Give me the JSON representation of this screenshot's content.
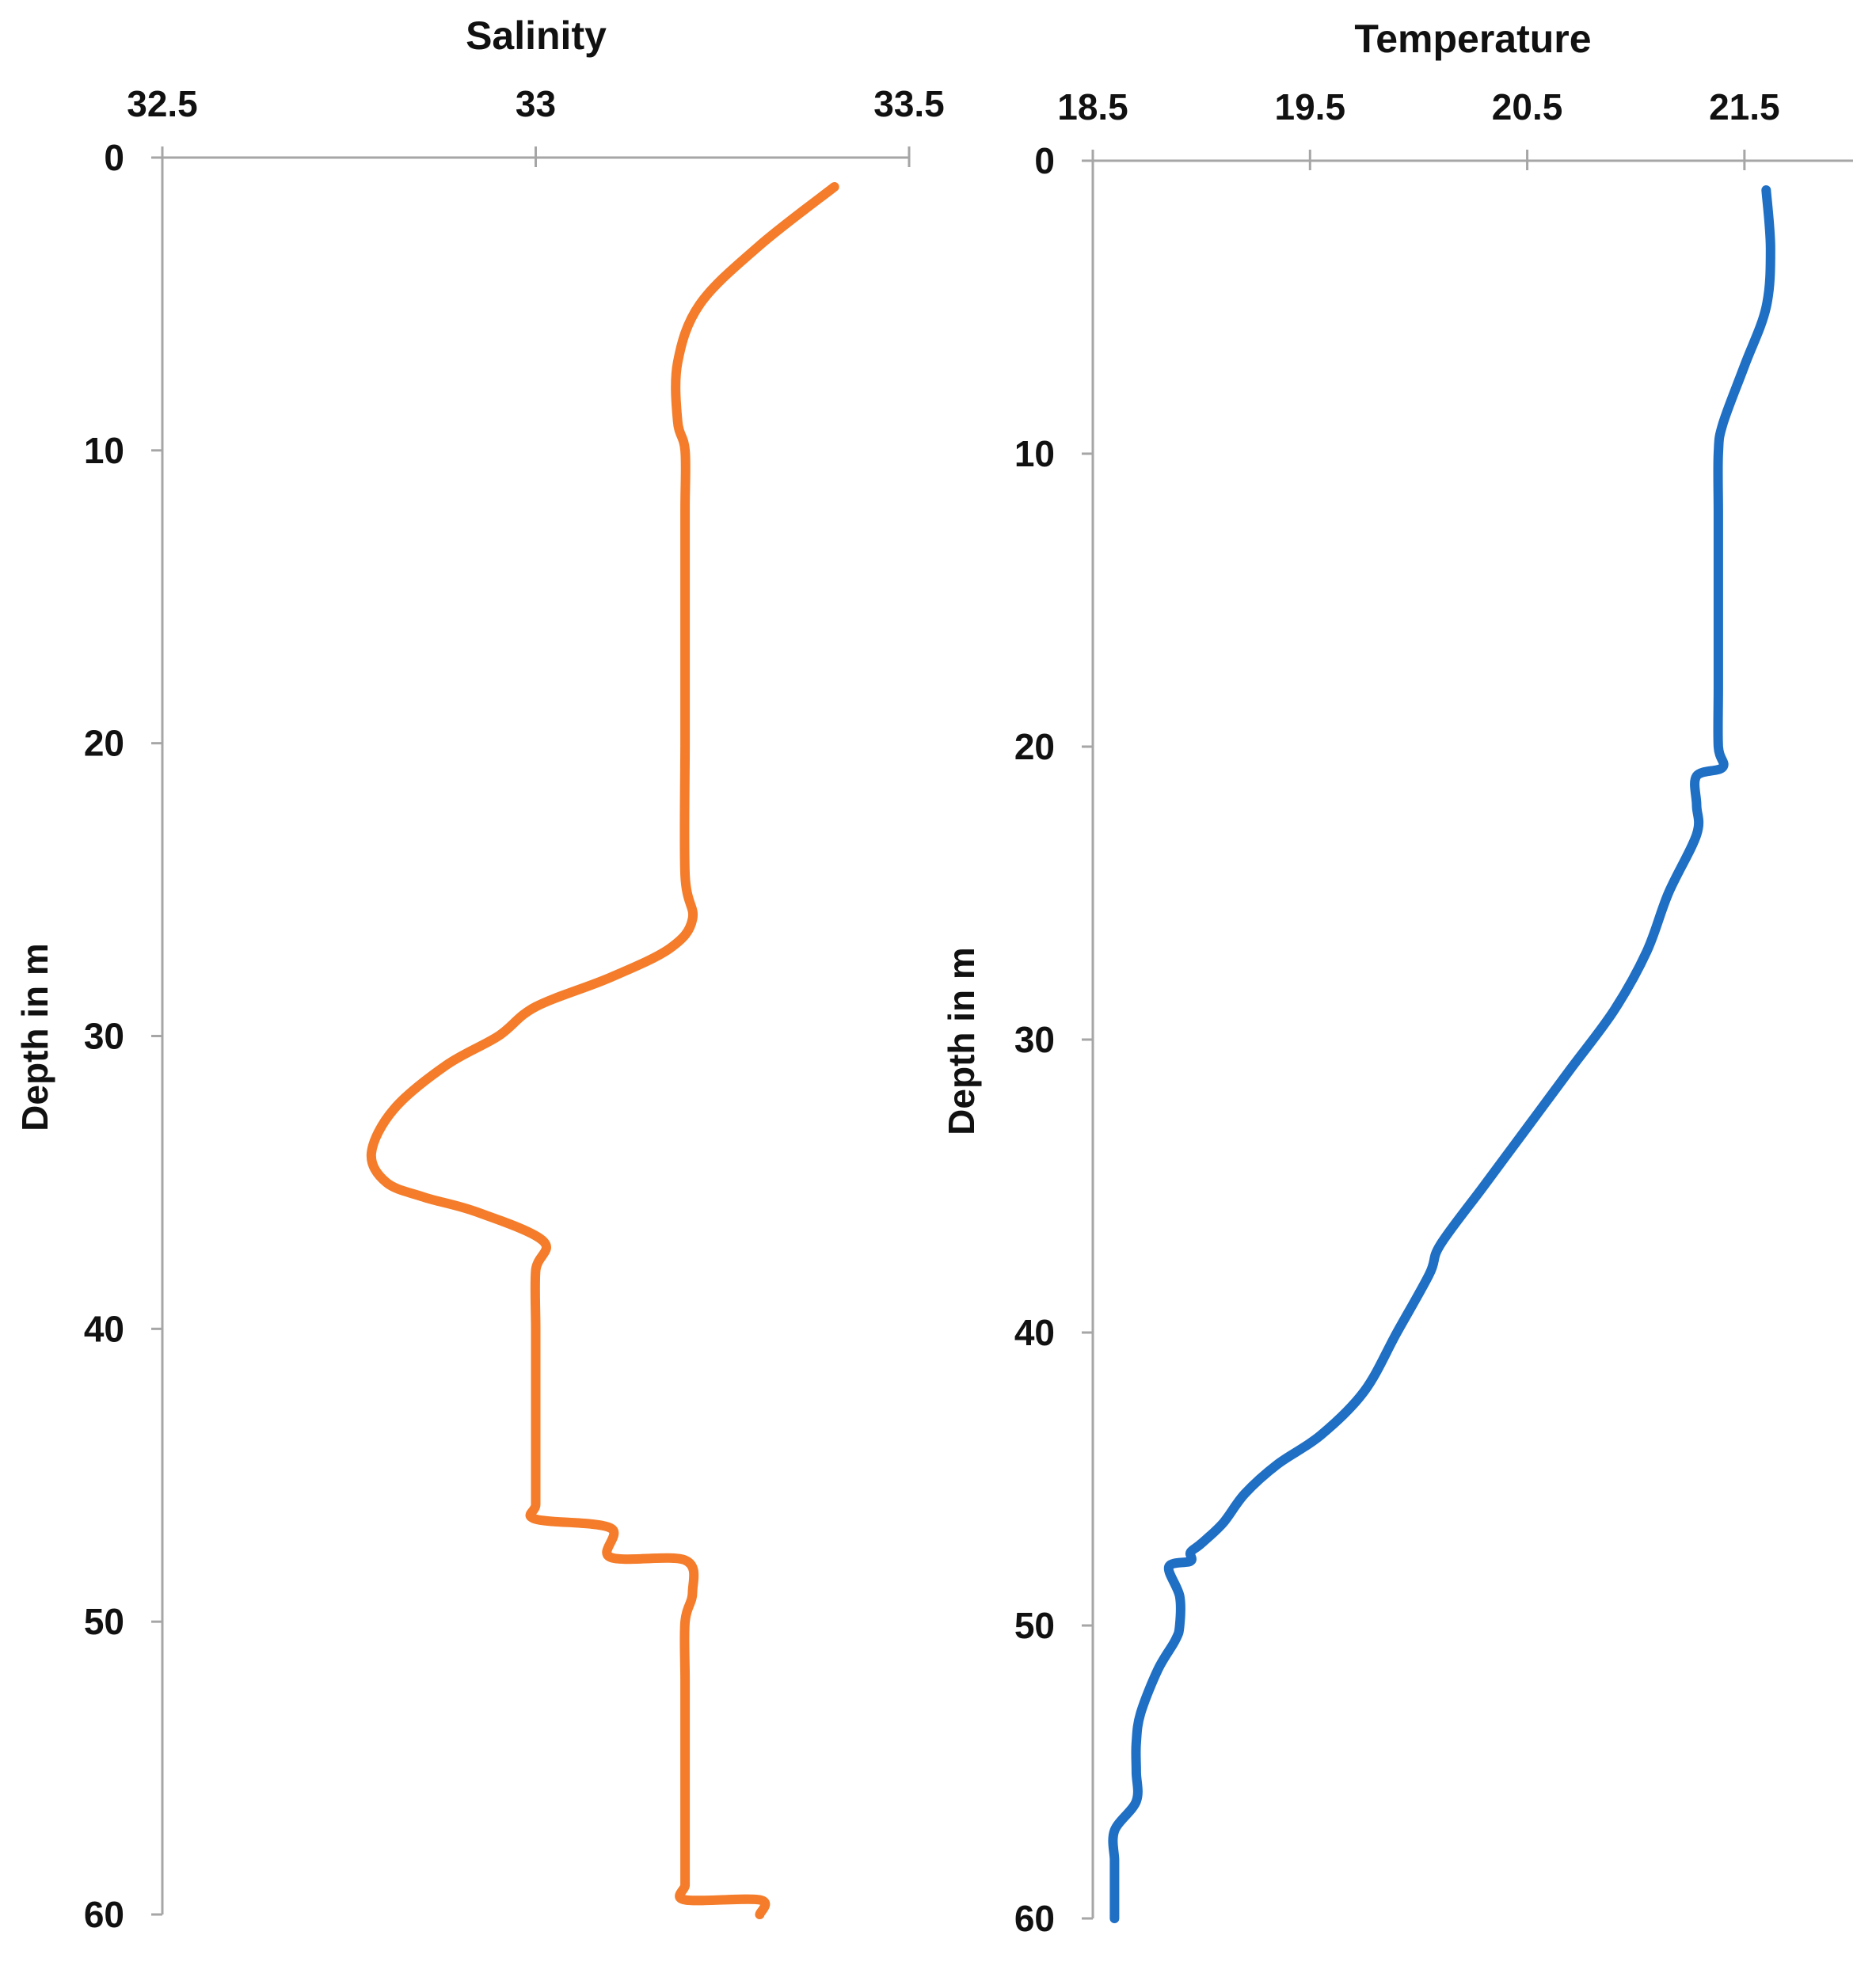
{
  "chart_data": [
    {
      "type": "line",
      "title": "Salinity",
      "xlabel": "",
      "ylabel": "Depth in m",
      "x_axis_position": "top",
      "y_axis_inverted": true,
      "xlim": [
        32.5,
        33.5
      ],
      "ylim": [
        0,
        60
      ],
      "xticks": [
        "32.5",
        "33",
        "33.5"
      ],
      "yticks": [
        "0",
        "10",
        "20",
        "30",
        "40",
        "50",
        "60"
      ],
      "grid": false,
      "legend": "none",
      "series": [
        {
          "color": "#f47c2a",
          "x": [
            33.4,
            33.3,
            33.22,
            33.19,
            33.19,
            33.2,
            33.2,
            33.2,
            33.2,
            33.2,
            33.2,
            33.21,
            33.18,
            33.1,
            33.0,
            32.95,
            32.88,
            32.81,
            32.78,
            32.8,
            32.85,
            32.92,
            33.01,
            33.0,
            33.0,
            33.0,
            33.0,
            33.0,
            33.0,
            33.0,
            33.1,
            33.1,
            33.2,
            33.21,
            33.2,
            33.2,
            33.2,
            33.2,
            33.2,
            33.2,
            33.2,
            33.2,
            33.2,
            33.3,
            33.3
          ],
          "y": [
            1,
            3,
            5,
            7,
            9,
            10,
            12,
            15,
            18,
            20,
            24.5,
            26,
            27,
            28,
            29,
            30,
            31,
            32.5,
            34,
            35,
            35.5,
            36,
            37,
            38,
            40,
            42,
            44,
            45,
            46,
            46.5,
            46.8,
            47.8,
            47.9,
            49,
            50,
            52,
            54,
            56,
            57,
            58,
            58.5,
            59,
            59.5,
            59.5,
            60
          ]
        }
      ]
    },
    {
      "type": "line",
      "title": "Temperature",
      "xlabel": "",
      "ylabel": "Depth in m",
      "x_axis_position": "top",
      "y_axis_inverted": true,
      "xlim": [
        18.5,
        22
      ],
      "ylim": [
        0,
        60
      ],
      "xticks": [
        "18.5",
        "19.5",
        "20.5",
        "21.5"
      ],
      "yticks": [
        "0",
        "10",
        "20",
        "30",
        "40",
        "50",
        "60"
      ],
      "grid": false,
      "legend": "none",
      "series": [
        {
          "color": "#1f6fc5",
          "x": [
            21.6,
            21.62,
            21.6,
            21.5,
            21.4,
            21.38,
            21.38,
            21.38,
            21.38,
            21.38,
            21.38,
            21.4,
            21.28,
            21.28,
            21.28,
            21.15,
            21.05,
            20.9,
            20.7,
            20.5,
            20.3,
            20.1,
            20.05,
            19.9,
            19.75,
            19.55,
            19.35,
            19.2,
            19.1,
            19.0,
            18.95,
            18.95,
            18.85,
            18.9,
            18.9,
            18.88,
            18.8,
            18.72,
            18.7,
            18.7,
            18.7,
            18.6,
            18.6,
            18.6,
            18.6,
            18.6
          ],
          "y": [
            1,
            3,
            5,
            7,
            9,
            10,
            12,
            14,
            16,
            18,
            20,
            20.7,
            21,
            22,
            23,
            25,
            27,
            29,
            31,
            33,
            35,
            37,
            38,
            40,
            42,
            43.5,
            44.5,
            45.5,
            46.5,
            47.2,
            47.5,
            47.8,
            48,
            49,
            50,
            50.5,
            51.5,
            53,
            54,
            55,
            56,
            57,
            58,
            58.5,
            59,
            60
          ]
        }
      ]
    }
  ]
}
